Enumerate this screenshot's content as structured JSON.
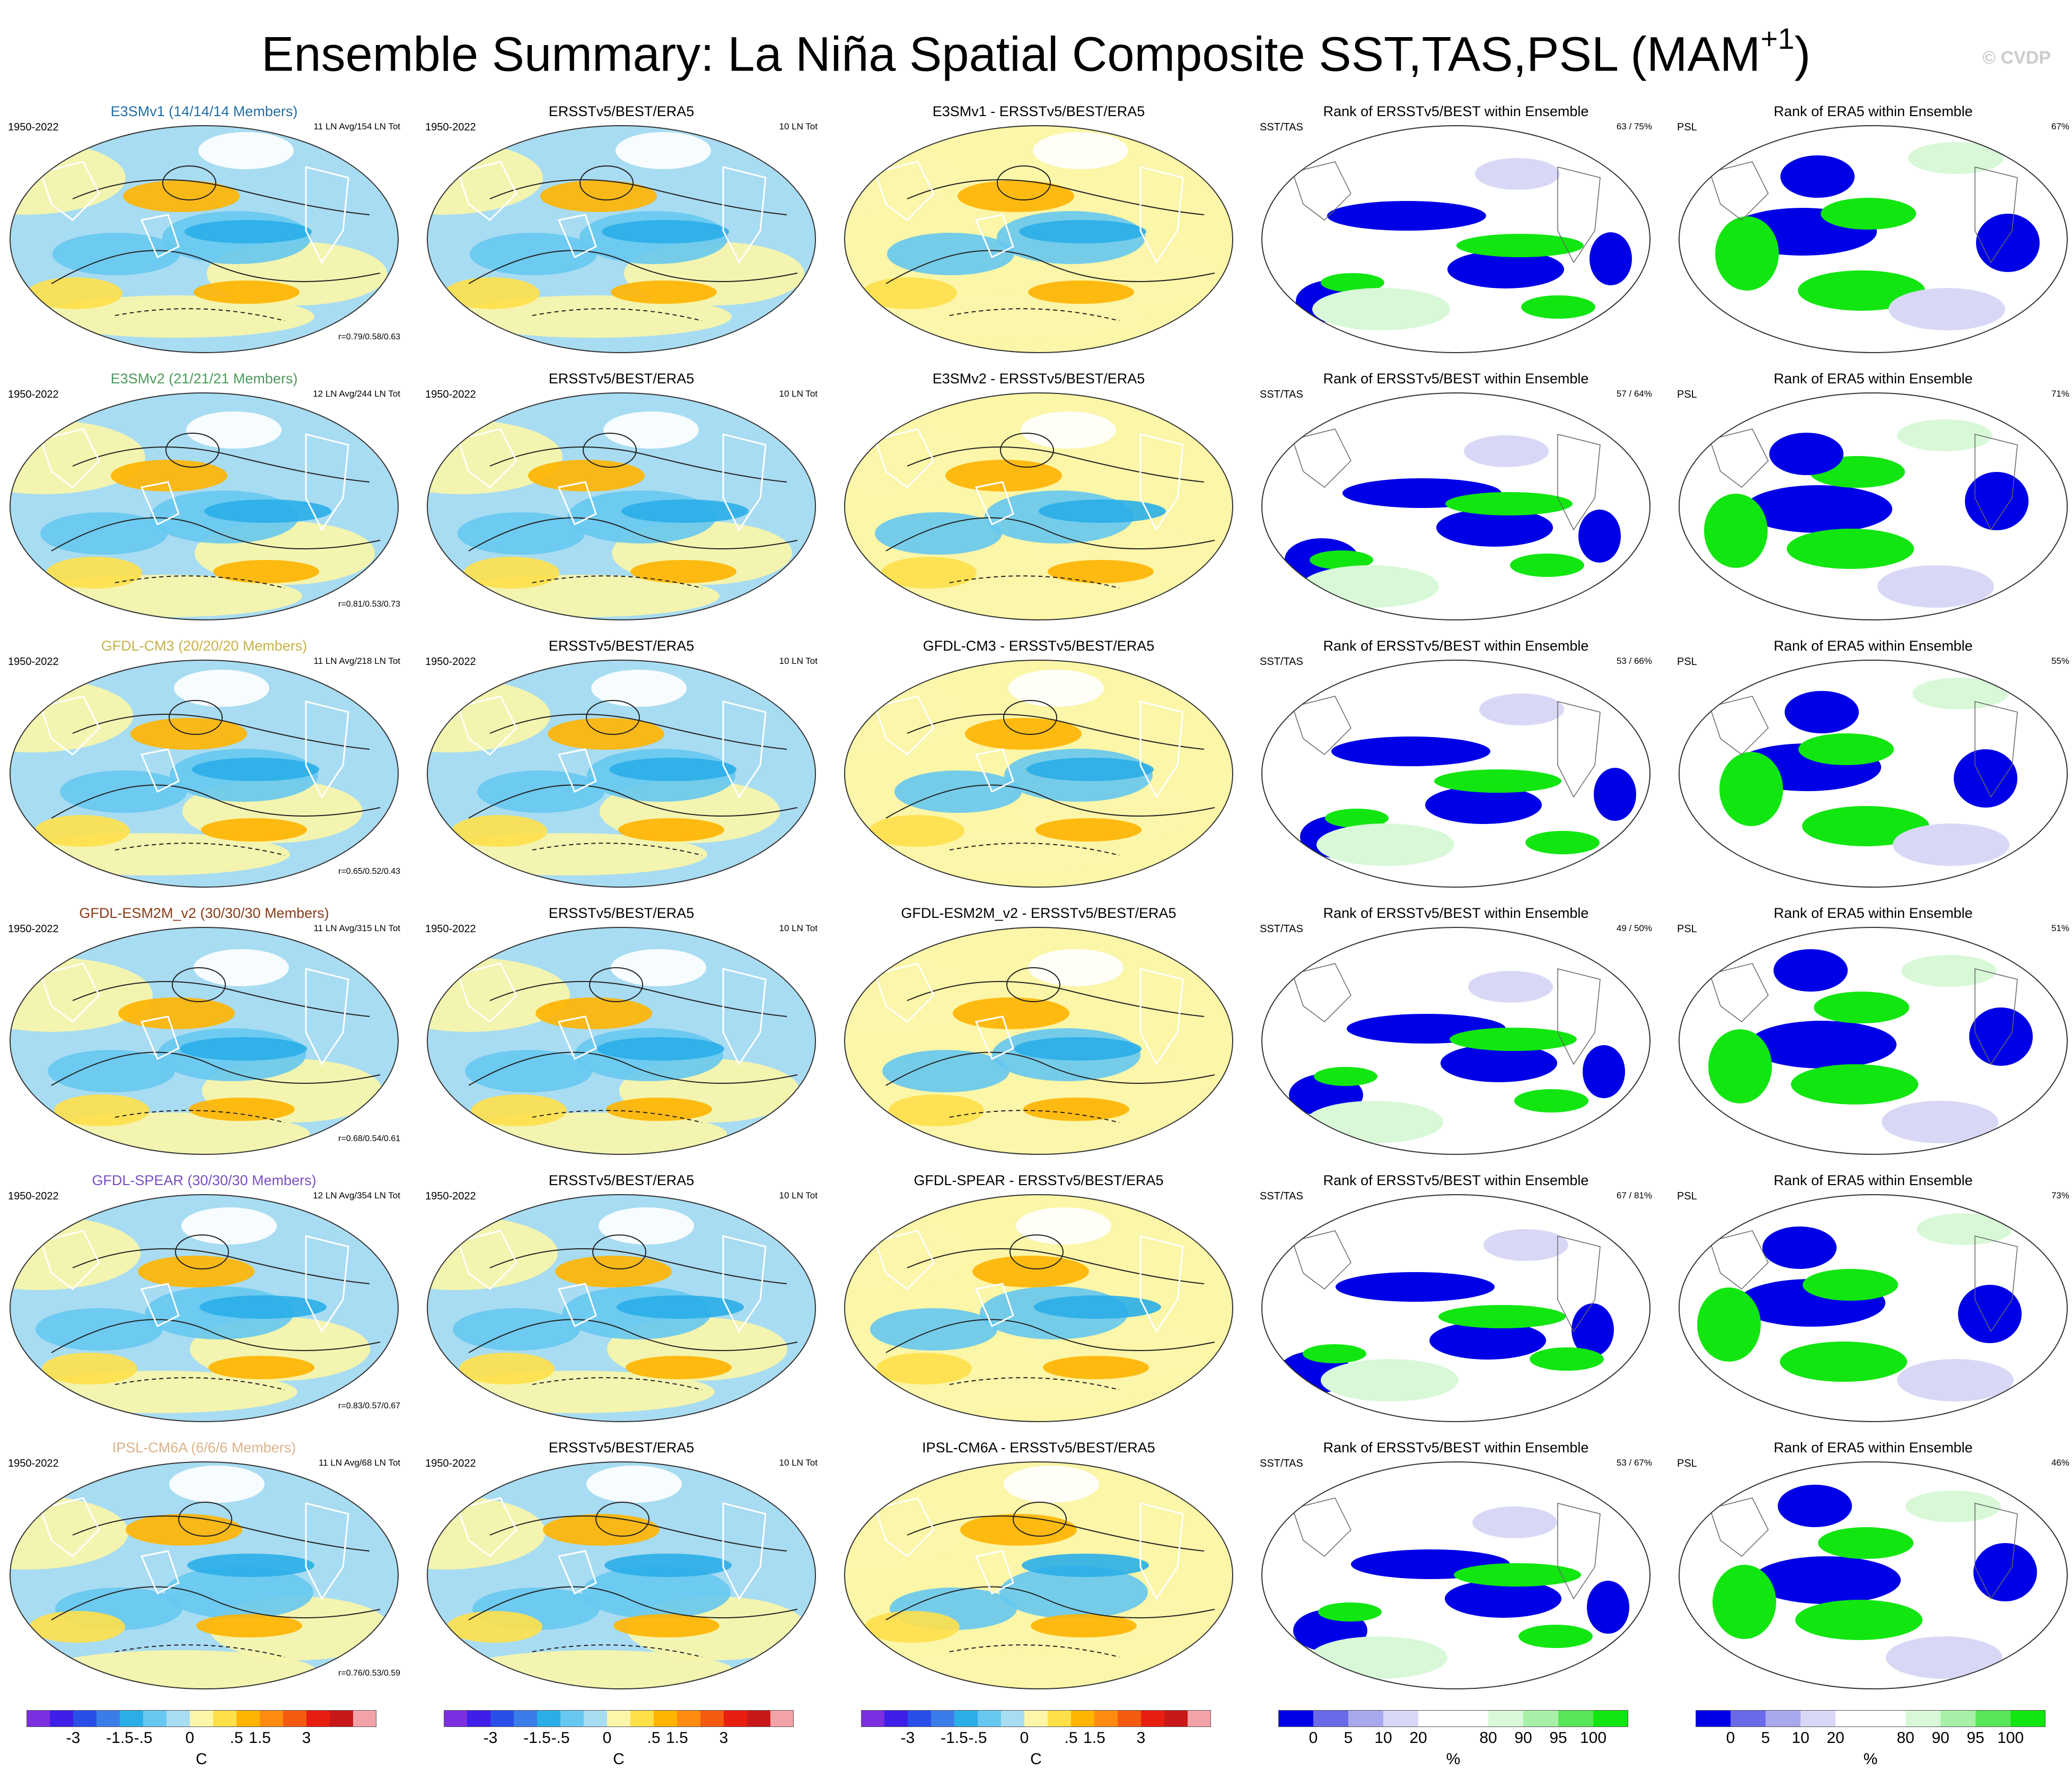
{
  "title": "Ensemble Summary: La Niña Spatial Composite SST,TAS,PSL (MAM",
  "title_superscript": "+1",
  "title_close": ")",
  "watermark": "© CVDP",
  "common": {
    "period": "1950-2022",
    "obs_title": "ERSSTv5/BEST/ERA5",
    "obs_count": "10 LN Tot",
    "rank_sst_title": "Rank of ERSSTv5/BEST within Ensemble",
    "rank_psl_title": "Rank of ERA5 within Ensemble",
    "sst_label": "SST/TAS",
    "psl_label": "PSL"
  },
  "rows": [
    {
      "model_title": "E3SMv1 (14/14/14 Members)",
      "title_color": "#1f6fa8",
      "counts": "11 LN Avg/154 LN Tot",
      "corr": "r=0.79/0.58/0.63",
      "diff_title": "E3SMv1 - ERSSTv5/BEST/ERA5",
      "sst_rank": "63 /  75%",
      "psl_rank": "67%"
    },
    {
      "model_title": "E3SMv2 (21/21/21 Members)",
      "title_color": "#4a9a5a",
      "counts": "12 LN Avg/244 LN Tot",
      "corr": "r=0.81/0.53/0.73",
      "diff_title": "E3SMv2 - ERSSTv5/BEST/ERA5",
      "sst_rank": "57 /  64%",
      "psl_rank": "71%"
    },
    {
      "model_title": "GFDL-CM3 (20/20/20 Members)",
      "title_color": "#c8b24a",
      "counts": "11 LN Avg/218 LN Tot",
      "corr": "r=0.65/0.52/0.43",
      "diff_title": "GFDL-CM3 - ERSSTv5/BEST/ERA5",
      "sst_rank": "53 /  66%",
      "psl_rank": "55%"
    },
    {
      "model_title": "GFDL-ESM2M_v2 (30/30/30 Members)",
      "title_color": "#8b3a16",
      "counts": "11 LN Avg/315 LN Tot",
      "corr": "r=0.68/0.54/0.61",
      "diff_title": "GFDL-ESM2M_v2 - ERSSTv5/BEST/ERA5",
      "sst_rank": "49 /  50%",
      "psl_rank": "51%"
    },
    {
      "model_title": "GFDL-SPEAR (30/30/30 Members)",
      "title_color": "#7a4ec2",
      "counts": "12 LN Avg/354 LN Tot",
      "corr": "r=0.83/0.57/0.67",
      "diff_title": "GFDL-SPEAR - ERSSTv5/BEST/ERA5",
      "sst_rank": "67 /  81%",
      "psl_rank": "73%"
    },
    {
      "model_title": "IPSL-CM6A (6/6/6 Members)",
      "title_color": "#d9b48a",
      "counts": "11 LN Avg/68 LN Tot",
      "corr": "r=0.76/0.53/0.59",
      "diff_title": "IPSL-CM6A - ERSSTv5/BEST/ERA5",
      "sst_rank": "53 /  67%",
      "psl_rank": "46%"
    }
  ],
  "temp_colorbar": {
    "colors": [
      "#7b2fe0",
      "#3d1fe8",
      "#2a4ee8",
      "#3a7de8",
      "#2aaee8",
      "#66c8f0",
      "#a8dcf2",
      "#fbf6a8",
      "#ffe04a",
      "#ffb400",
      "#ff8c10",
      "#f45b10",
      "#e81f10",
      "#c81818",
      "#f3a3a8"
    ],
    "tick_labels": [
      "-3",
      "-1.5",
      "-.5",
      "0",
      ".5",
      "1.5",
      "3"
    ],
    "unit": "C"
  },
  "rank_colorbar": {
    "colors": [
      "#0000e6",
      "#6a6ae8",
      "#a8a8ee",
      "#d8d8f6",
      "#ffffff",
      "#ffffff",
      "#d8f8d8",
      "#a8f0a8",
      "#5ae65a",
      "#11e611"
    ],
    "tick_labels": [
      "0",
      "5",
      "10",
      "20",
      "80",
      "90",
      "95",
      "100"
    ],
    "unit": "%"
  }
}
